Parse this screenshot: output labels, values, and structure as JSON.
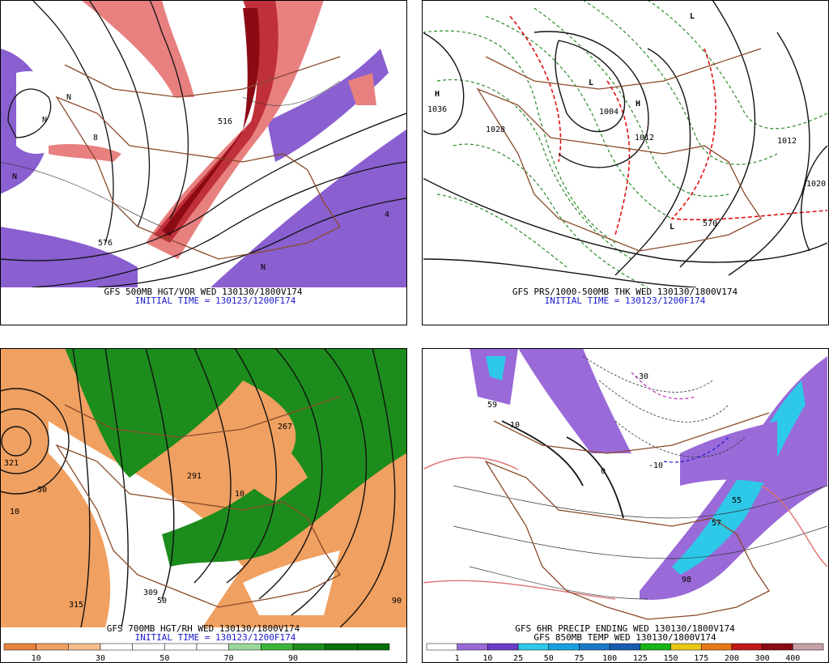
{
  "panels": [
    {
      "caption": "GFS 500MB HGT/VOR WED 130130/1800V174",
      "subcaption": "INITIAL TIME = 130123/1200F174",
      "labels": [
        "N",
        "N",
        "N",
        "576",
        "516",
        "8",
        "4",
        "N"
      ]
    },
    {
      "caption": "GFS PRS/1000-500MB THK WED 130130/1800V174",
      "subcaption": "INITIAL TIME = 130123/1200F174",
      "labels": [
        "H",
        "1036",
        "L",
        "1004",
        "H",
        "1012",
        "1028",
        "1020",
        "L",
        "570",
        "L",
        "1012"
      ]
    },
    {
      "caption": "GFS 700MB HGT/RH WED 130130/1800V174",
      "subcaption": "INITIAL TIME = 130123/1200F174",
      "labels": [
        "321",
        "10",
        "315",
        "291",
        "50",
        "10",
        "309",
        "50",
        "267",
        "90"
      ],
      "colorbar": [
        10,
        30,
        50,
        70,
        90
      ]
    },
    {
      "caption": "GFS 6HR PRECIP ENDING WED 130130/1800V174",
      "subcaption": "GFS 850MB TEMP WED 130130/1800V174",
      "labels": [
        "-10",
        "-30",
        "0",
        "10",
        "55",
        "57",
        "98",
        "59"
      ],
      "colorbar": [
        1,
        10,
        25,
        50,
        75,
        100,
        125,
        150,
        175,
        200,
        300,
        400
      ]
    }
  ]
}
